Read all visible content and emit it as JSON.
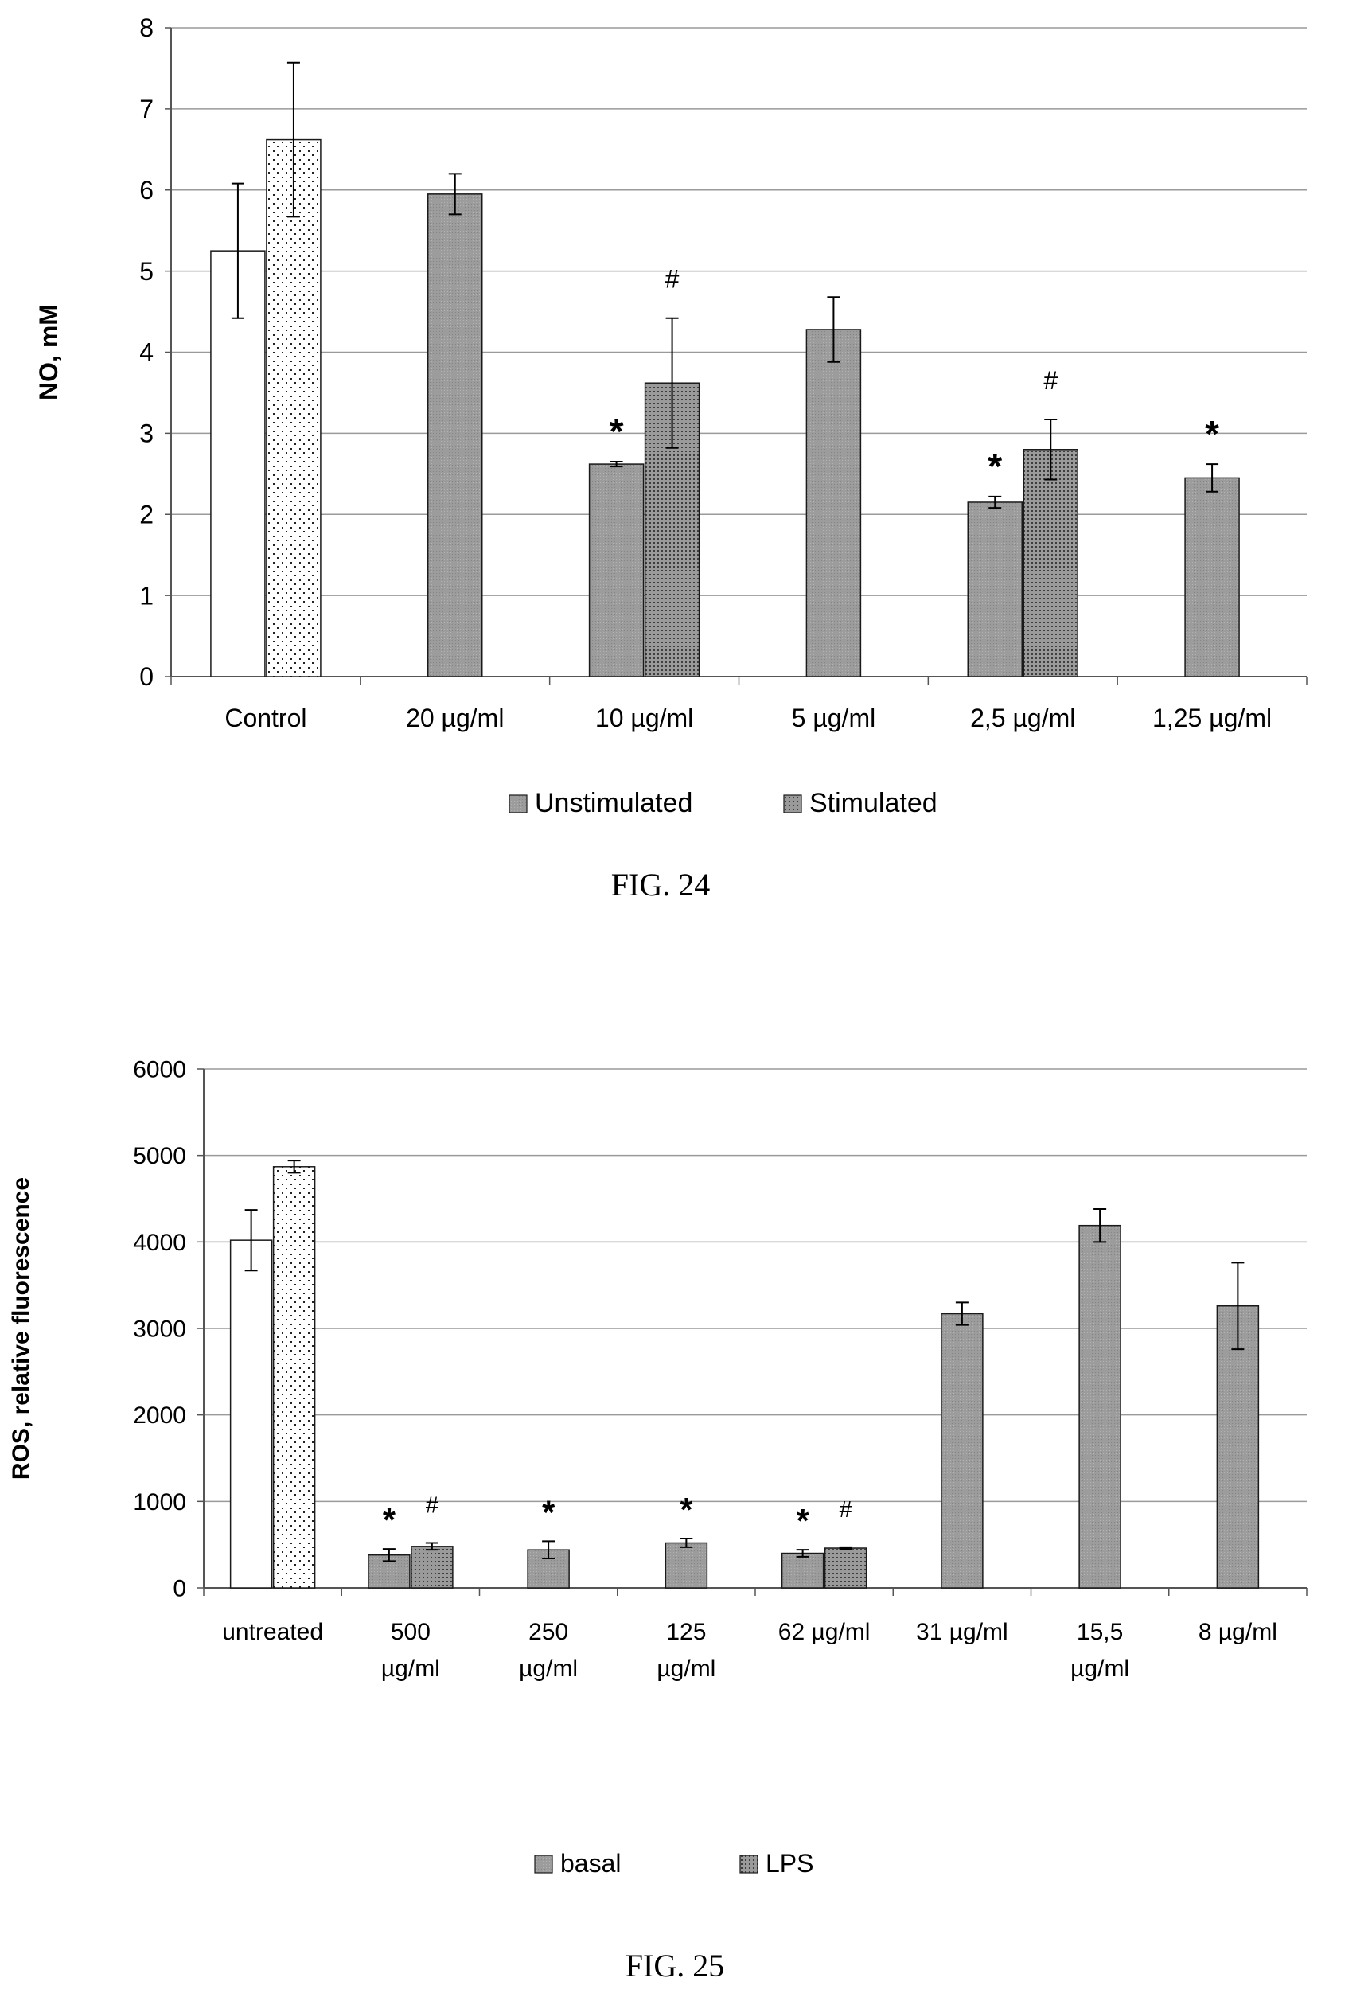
{
  "figures": [
    {
      "caption": "FIG. 24",
      "legend": [
        {
          "label": "Unstimulated",
          "style": "solid"
        },
        {
          "label": "Stimulated",
          "style": "dotted-dark"
        }
      ]
    },
    {
      "caption": "FIG. 25",
      "legend": [
        {
          "label": "basal",
          "style": "solid"
        },
        {
          "label": "LPS",
          "style": "dotted-dark"
        }
      ]
    }
  ],
  "colors": {
    "bar_fill": "#9a9a9a",
    "bar_stroke": "#1a1a1a",
    "control_fill": "#ffffff",
    "gridline": "#9a9a9a",
    "text": "#000000"
  },
  "chart_data": [
    {
      "type": "bar",
      "title": "",
      "xlabel": "",
      "ylabel": "NO, mM",
      "ylim": [
        0,
        8
      ],
      "yticks": [
        0,
        1,
        2,
        3,
        4,
        5,
        6,
        7,
        8
      ],
      "grid": true,
      "legend_position": "bottom",
      "categories": [
        "Control",
        "20 µg/ml",
        "10 µg/ml",
        "5 µg/ml",
        "2,5 µg/ml",
        "1,25 µg/ml"
      ],
      "series": [
        {
          "name": "Unstimulated",
          "values": [
            5.25,
            5.95,
            2.62,
            4.28,
            2.15,
            2.45
          ],
          "errors": [
            0.83,
            0.25,
            0.03,
            0.4,
            0.07,
            0.17
          ]
        },
        {
          "name": "Stimulated",
          "values": [
            6.62,
            null,
            3.62,
            null,
            2.8,
            null
          ],
          "errors": [
            0.95,
            null,
            0.8,
            null,
            0.37,
            null
          ]
        }
      ],
      "control_category_index": 0,
      "annotations": [
        {
          "category": "10 µg/ml",
          "series": "Unstimulated",
          "text": "*"
        },
        {
          "category": "10 µg/ml",
          "series": "Stimulated",
          "text": "#"
        },
        {
          "category": "2,5 µg/ml",
          "series": "Unstimulated",
          "text": "*"
        },
        {
          "category": "2,5 µg/ml",
          "series": "Stimulated",
          "text": "#"
        },
        {
          "category": "1,25 µg/ml",
          "series": "Unstimulated",
          "text": "*"
        }
      ]
    },
    {
      "type": "bar",
      "title": "",
      "xlabel": "",
      "ylabel": "ROS, relative fluorescence",
      "ylim": [
        0,
        6000
      ],
      "yticks": [
        0,
        1000,
        2000,
        3000,
        4000,
        5000,
        6000
      ],
      "grid": true,
      "legend_position": "bottom",
      "categories": [
        [
          "untreated"
        ],
        [
          "500",
          "µg/ml"
        ],
        [
          "250",
          "µg/ml"
        ],
        [
          "125",
          "µg/ml"
        ],
        [
          "62  µg/ml"
        ],
        [
          "31  µg/ml"
        ],
        [
          "15,5",
          "µg/ml"
        ],
        [
          "8  µg/ml"
        ]
      ],
      "series": [
        {
          "name": "basal",
          "values": [
            4020,
            380,
            440,
            520,
            400,
            3170,
            4190,
            3260
          ],
          "errors": [
            350,
            70,
            100,
            50,
            40,
            130,
            190,
            500
          ]
        },
        {
          "name": "LPS",
          "values": [
            4870,
            480,
            null,
            null,
            460,
            null,
            null,
            null
          ],
          "errors": [
            70,
            40,
            null,
            null,
            10,
            null,
            null,
            null
          ]
        }
      ],
      "control_category_index": 0,
      "annotations": [
        {
          "category": "500 µg/ml",
          "series": "basal",
          "text": "*"
        },
        {
          "category": "500 µg/ml",
          "series": "LPS",
          "text": "#"
        },
        {
          "category": "250 µg/ml",
          "series": "basal",
          "text": "*"
        },
        {
          "category": "125 µg/ml",
          "series": "basal",
          "text": "*"
        },
        {
          "category": "62 µg/ml",
          "series": "basal",
          "text": "*"
        },
        {
          "category": "62 µg/ml",
          "series": "LPS",
          "text": "#"
        }
      ]
    }
  ]
}
